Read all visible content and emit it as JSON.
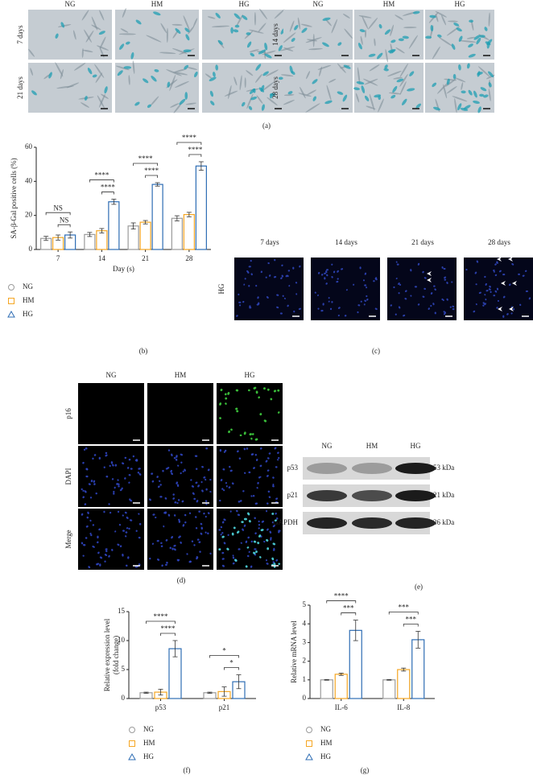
{
  "panels": {
    "a": {
      "label": "(a)",
      "groups": [
        {
          "columns": [
            "NG",
            "HM",
            "HG"
          ],
          "rows": [
            "7 days",
            "21 days"
          ]
        },
        {
          "columns": [
            "NG",
            "HM",
            "HG"
          ],
          "rows": [
            "14 days",
            "28 days"
          ]
        }
      ]
    },
    "c": {
      "label": "(c)",
      "row": "HG",
      "columns": [
        "7 days",
        "14 days",
        "21 days",
        "28 days"
      ]
    },
    "d": {
      "label": "(d)",
      "columns": [
        "NG",
        "HM",
        "HG"
      ],
      "rows": [
        "p16",
        "DAPI",
        "Merge"
      ]
    },
    "e": {
      "label": "(e)",
      "columns": [
        "NG",
        "HM",
        "HG"
      ],
      "rows": [
        {
          "protein": "p53",
          "size": "53 kDa"
        },
        {
          "protein": "p21",
          "size": "21 kDa"
        },
        {
          "protein": "GAPDH",
          "size": "36 kDa"
        }
      ]
    }
  },
  "chart_data": [
    {
      "type": "bar",
      "panel_label": "(b)",
      "y_label": [
        "SA-β-Gal positive cells (%)"
      ],
      "x_label": "Day (s)",
      "categories": [
        "7",
        "14",
        "21",
        "28"
      ],
      "series": [
        {
          "name": "NG",
          "color": "#9b9b9b",
          "marker": "circle",
          "values": [
            6.5,
            8.8,
            13.8,
            18.3
          ],
          "errors": [
            1.2,
            1.2,
            1.8,
            1.5
          ]
        },
        {
          "name": "HM",
          "color": "#f5a623",
          "marker": "square",
          "values": [
            7,
            11,
            16,
            20.5
          ],
          "errors": [
            1.5,
            1.3,
            1,
            1.3
          ]
        },
        {
          "name": "HG",
          "color": "#2e6db4",
          "marker": "triangle",
          "values": [
            8.5,
            28,
            38.2,
            49
          ],
          "errors": [
            1.8,
            1.5,
            1,
            2.5
          ]
        }
      ],
      "ylim": [
        0,
        60
      ],
      "yticks": [
        0,
        20,
        40,
        60
      ],
      "significance": [
        [
          "NS",
          "NS"
        ],
        [
          "****",
          "****"
        ],
        [
          "****",
          "****"
        ],
        [
          "****",
          "****"
        ]
      ]
    },
    {
      "type": "bar",
      "panel_label": "(f)",
      "y_label": [
        "Relative expression level",
        "(fold change)"
      ],
      "categories": [
        "p53",
        "p21"
      ],
      "series": [
        {
          "name": "NG",
          "color": "#9b9b9b",
          "marker": "circle",
          "values": [
            1,
            1
          ],
          "errors": [
            0.1,
            0.1
          ]
        },
        {
          "name": "HM",
          "color": "#f5a623",
          "marker": "square",
          "values": [
            1.1,
            1.2
          ],
          "errors": [
            0.5,
            0.8
          ]
        },
        {
          "name": "HG",
          "color": "#2e6db4",
          "marker": "triangle",
          "values": [
            8.6,
            2.9
          ],
          "errors": [
            1.4,
            1.2
          ]
        }
      ],
      "ylim": [
        0,
        15
      ],
      "yticks": [
        0,
        5,
        10,
        15
      ],
      "significance": [
        [
          "****",
          "****"
        ],
        [
          "*",
          "*"
        ]
      ]
    },
    {
      "type": "bar",
      "panel_label": "(g)",
      "y_label": [
        "Relative mRNA level"
      ],
      "categories": [
        "IL-6",
        "IL-8"
      ],
      "series": [
        {
          "name": "NG",
          "color": "#9b9b9b",
          "marker": "circle",
          "values": [
            1,
            1
          ],
          "errors": [
            0.02,
            0.02
          ]
        },
        {
          "name": "HM",
          "color": "#f5a623",
          "marker": "square",
          "values": [
            1.3,
            1.55
          ],
          "errors": [
            0.06,
            0.08
          ]
        },
        {
          "name": "HG",
          "color": "#2e6db4",
          "marker": "triangle",
          "values": [
            3.65,
            3.15
          ],
          "errors": [
            0.55,
            0.45
          ]
        }
      ],
      "ylim": [
        0,
        5
      ],
      "yticks": [
        0,
        1,
        2,
        3,
        4,
        5
      ],
      "significance": [
        [
          "****",
          "***"
        ],
        [
          "***",
          "***"
        ]
      ]
    }
  ]
}
